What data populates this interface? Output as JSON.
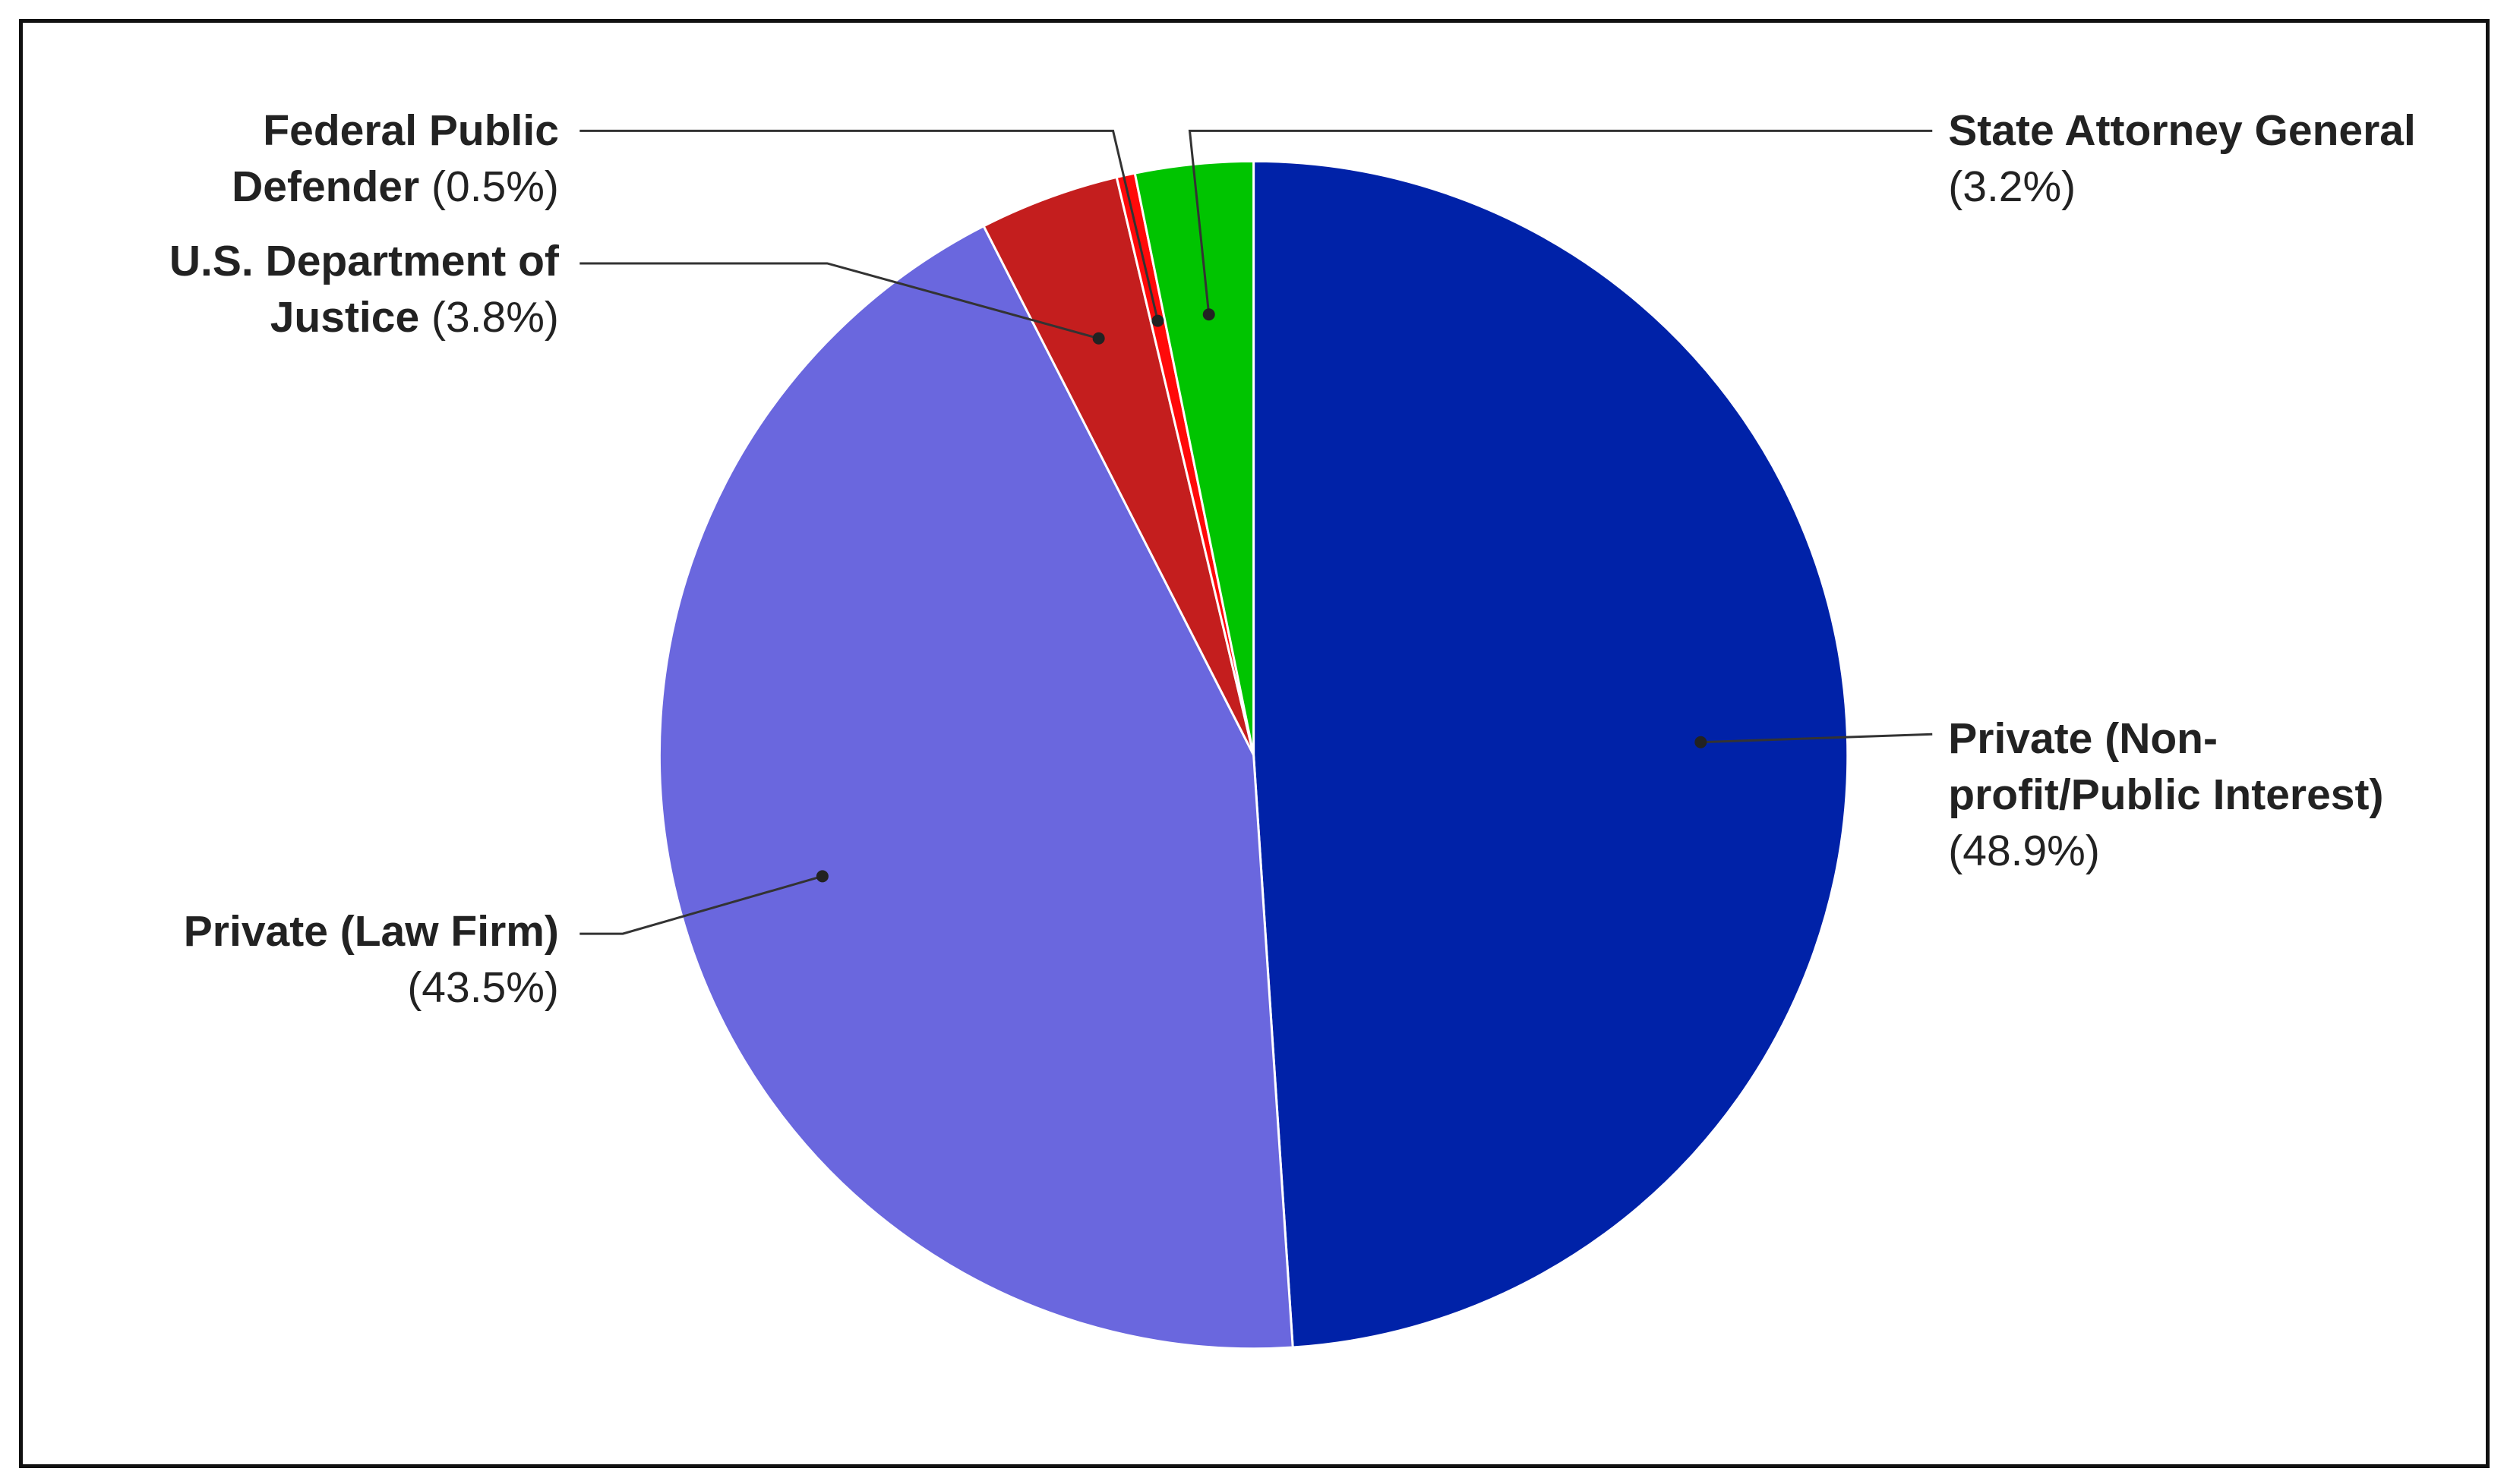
{
  "chart_data": {
    "type": "pie",
    "categories": [
      "Private (Non-profit/Public Interest)",
      "Private (Law Firm)",
      "U.S. Department of Justice",
      "Federal Public Defender",
      "State Attorney General"
    ],
    "values": [
      48.9,
      43.5,
      3.8,
      0.5,
      3.2
    ],
    "value_labels": [
      "(48.9%)",
      "(43.5%)",
      "(3.8%)",
      "(0.5%)",
      "(3.2%)"
    ],
    "colors": [
      "#0022a8",
      "#6a67de",
      "#c41e1e",
      "#ff0a0a",
      "#00c400"
    ]
  }
}
